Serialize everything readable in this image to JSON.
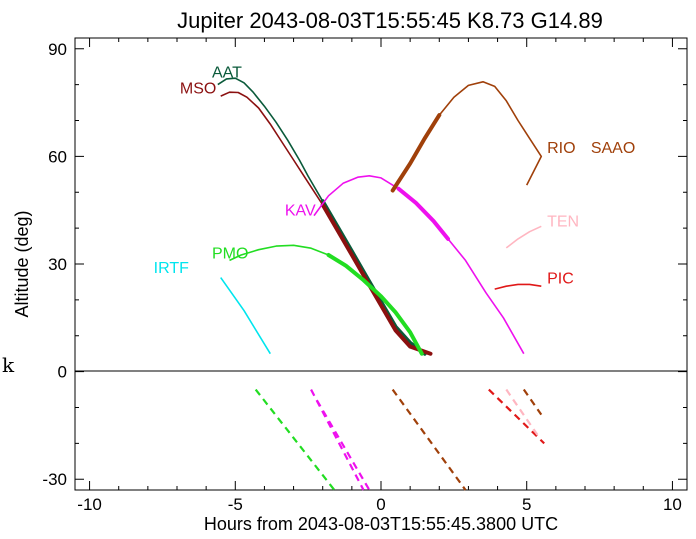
{
  "chart_data": {
    "type": "line",
    "title": "Jupiter 2043-08-03T15:55:45  K8.73  G14.89",
    "xlabel": "Hours from 2043-08-03T15:55:45.3800 UTC",
    "ylabel": "Altitude (deg)",
    "xlim": [
      -10.5,
      10.5
    ],
    "ylim": [
      -33,
      93
    ],
    "xticks": [
      -10,
      -5,
      0,
      5,
      10
    ],
    "yticks": [
      -30,
      0,
      30,
      60,
      90
    ],
    "stray_label": "k",
    "series": [
      {
        "name": "AAT",
        "color": "#0a5a3a",
        "label_at": [
          -5.8,
          82
        ],
        "points": [
          [
            -5.6,
            80
          ],
          [
            -5.3,
            81.6
          ],
          [
            -5.0,
            81.8
          ],
          [
            -4.7,
            80.5
          ],
          [
            -4.4,
            78
          ],
          [
            -4.0,
            74
          ],
          [
            -3.6,
            69.5
          ],
          [
            -3.2,
            64.5
          ],
          [
            -2.8,
            59
          ],
          [
            -2.5,
            54.5
          ],
          [
            -2.0,
            47.5
          ],
          [
            -1.5,
            40.5
          ],
          [
            -1.0,
            33.5
          ],
          [
            -0.5,
            26.5
          ],
          [
            0.0,
            19.5
          ],
          [
            0.5,
            12.5
          ],
          [
            1.0,
            8
          ],
          [
            1.5,
            5
          ]
        ],
        "thick_from": -2.4
      },
      {
        "name": "MSO",
        "color": "#8b1010",
        "label_at": [
          -6.9,
          77.5
        ],
        "points": [
          [
            -5.5,
            76.8
          ],
          [
            -5.2,
            77.9
          ],
          [
            -4.9,
            77.8
          ],
          [
            -4.6,
            76.5
          ],
          [
            -4.2,
            73.5
          ],
          [
            -3.8,
            69
          ],
          [
            -3.4,
            64
          ],
          [
            -3.0,
            59
          ],
          [
            -2.6,
            54
          ],
          [
            -2.0,
            46.5
          ],
          [
            -1.5,
            39.5
          ],
          [
            -1.0,
            32.5
          ],
          [
            -0.5,
            25.5
          ],
          [
            0.0,
            18.5
          ],
          [
            0.5,
            11.5
          ],
          [
            1.0,
            7
          ],
          [
            1.7,
            5
          ]
        ],
        "thick_from": -2.5
      },
      {
        "name": "PMO",
        "color": "#22dd22",
        "label_at": [
          -5.8,
          31.5
        ],
        "points": [
          [
            -5.2,
            31
          ],
          [
            -4.8,
            32.5
          ],
          [
            -4.2,
            34
          ],
          [
            -3.6,
            35
          ],
          [
            -3.0,
            35.2
          ],
          [
            -2.4,
            34.4
          ],
          [
            -1.8,
            32.5
          ],
          [
            -1.2,
            29.5
          ],
          [
            -0.6,
            25.5
          ],
          [
            0.0,
            21
          ],
          [
            0.5,
            16.5
          ],
          [
            1.0,
            11
          ],
          [
            1.4,
            5
          ]
        ],
        "thick_from": -2.3
      },
      {
        "name": "IRTF",
        "color": "#00e5ee",
        "label_at": [
          -7.8,
          27.5
        ],
        "points": [
          [
            -5.5,
            26.2
          ],
          [
            -4.7,
            17
          ],
          [
            -3.8,
            5
          ]
        ]
      },
      {
        "name": "KAV",
        "color": "#ee11ee",
        "label_at": [
          -3.3,
          43.5
        ],
        "points": [
          [
            -2.3,
            43.5
          ],
          [
            -1.8,
            49
          ],
          [
            -1.3,
            52.5
          ],
          [
            -0.8,
            54.2
          ],
          [
            -0.4,
            54.6
          ],
          [
            0.0,
            54
          ],
          [
            0.6,
            51
          ],
          [
            1.2,
            47
          ],
          [
            1.8,
            42
          ],
          [
            2.3,
            37
          ],
          [
            2.9,
            31
          ],
          [
            3.6,
            22
          ],
          [
            4.2,
            15
          ],
          [
            4.9,
            5
          ]
        ],
        "thick_from": 0.2,
        "thick_to": 2.3
      },
      {
        "name": "RIO",
        "color": "#a0400a",
        "label_at": [
          5.7,
          61
        ],
        "points": [
          [
            0.4,
            50.5
          ],
          [
            1.0,
            58
          ],
          [
            1.5,
            65
          ],
          [
            2.0,
            71.5
          ],
          [
            2.5,
            76.5
          ],
          [
            3.0,
            79.8
          ],
          [
            3.5,
            80.8
          ],
          [
            3.9,
            79.5
          ],
          [
            4.3,
            75.5
          ],
          [
            4.7,
            70
          ],
          [
            5.1,
            65
          ],
          [
            5.5,
            60
          ],
          [
            5.0,
            52
          ]
        ],
        "thick_from": 0.4,
        "thick_to": 2.2
      },
      {
        "name": "SAAO",
        "color": "#a0400a",
        "label_at": [
          7.2,
          61
        ],
        "points": []
      },
      {
        "name": "TEN",
        "color": "#ffb6c1",
        "label_at": [
          5.7,
          40.5
        ],
        "points": [
          [
            4.3,
            34.5
          ],
          [
            4.7,
            37
          ],
          [
            5.1,
            39
          ],
          [
            5.5,
            40.5
          ]
        ]
      },
      {
        "name": "PIC",
        "color": "#e01818",
        "label_at": [
          5.7,
          24.5
        ],
        "points": [
          [
            3.9,
            23
          ],
          [
            4.3,
            23.8
          ],
          [
            4.7,
            24.3
          ],
          [
            5.1,
            24.3
          ],
          [
            5.5,
            23.8
          ]
        ]
      }
    ],
    "below_horizon": [
      {
        "color": "#22dd22",
        "from": [
          -4.3,
          -5
        ],
        "to": [
          -1.6,
          -33
        ],
        "dash": true
      },
      {
        "color": "#ee11ee",
        "from": [
          -2.4,
          -5
        ],
        "to": [
          -0.6,
          -33
        ],
        "dash": true
      },
      {
        "color": "#ee11ee",
        "from": [
          -2.2,
          -8
        ],
        "to": [
          -0.4,
          -33
        ],
        "dash": true
      },
      {
        "color": "#a0400a",
        "from": [
          0.4,
          -5
        ],
        "to": [
          2.9,
          -33
        ],
        "dash": true
      },
      {
        "color": "#e01818",
        "from": [
          3.7,
          -5
        ],
        "to": [
          5.6,
          -20
        ],
        "dash": true
      },
      {
        "color": "#ffb6c1",
        "from": [
          4.3,
          -5
        ],
        "to": [
          5.4,
          -18
        ],
        "dash": true
      },
      {
        "color": "#a0400a",
        "from": [
          4.9,
          -5
        ],
        "to": [
          5.5,
          -12
        ],
        "dash": true
      }
    ]
  }
}
